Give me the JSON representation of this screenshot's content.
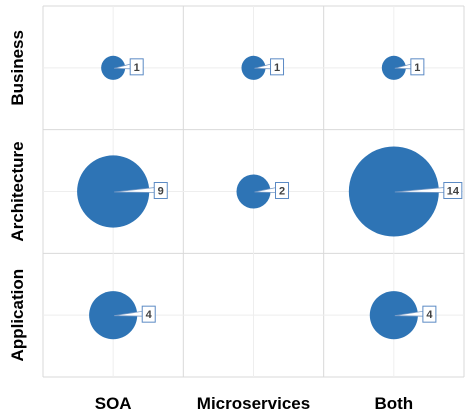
{
  "chart_data": {
    "type": "scatter",
    "subtype": "bubble",
    "title": "",
    "xlabel": "",
    "ylabel": "",
    "x_categories": [
      "SOA",
      "Microservices",
      "Both"
    ],
    "y_categories": [
      "Application",
      "Architecture",
      "Business"
    ],
    "grid": true,
    "legend": "none",
    "bubble_color": "#2e74b5",
    "points": [
      {
        "x": "SOA",
        "y": "Business",
        "value": 1
      },
      {
        "x": "Microservices",
        "y": "Business",
        "value": 1
      },
      {
        "x": "Both",
        "y": "Business",
        "value": 1
      },
      {
        "x": "SOA",
        "y": "Architecture",
        "value": 9
      },
      {
        "x": "Microservices",
        "y": "Architecture",
        "value": 2
      },
      {
        "x": "Both",
        "y": "Architecture",
        "value": 14
      },
      {
        "x": "SOA",
        "y": "Application",
        "value": 4
      },
      {
        "x": "Both",
        "y": "Application",
        "value": 4
      }
    ]
  }
}
